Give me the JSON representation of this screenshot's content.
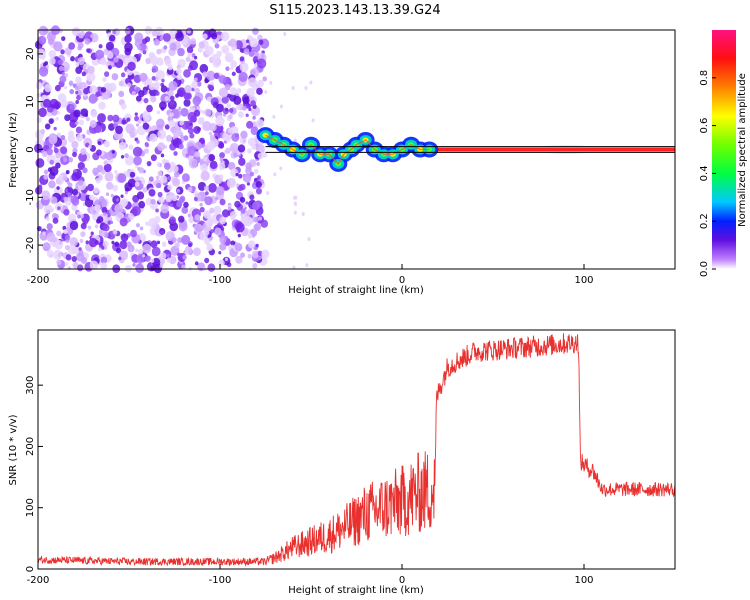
{
  "figure": {
    "title": "S115.2023.143.13.39.G24"
  },
  "chart_data": [
    {
      "type": "heatmap",
      "xlabel": "Height of straight line (km)",
      "ylabel": "Frequency (Hz)",
      "xlim": [
        -200,
        150
      ],
      "ylim": [
        -25,
        25
      ],
      "x_ticks": [
        -200,
        -100,
        0,
        100
      ],
      "y_ticks": [
        -20,
        -10,
        0,
        10,
        20
      ],
      "colorbar": {
        "label": "Normalized spectral amplitude",
        "range": [
          0,
          1
        ],
        "ticks": [
          0.0,
          0.2,
          0.4,
          0.6,
          0.8
        ],
        "colormap": "rainbow"
      },
      "regions": [
        {
          "description_x": [
            -200,
            -75
          ],
          "type": "noise",
          "amplitude": 0.12
        },
        {
          "description_x": [
            -75,
            15
          ],
          "type": "wandering",
          "amplitude": 0.45
        },
        {
          "description_x": [
            15,
            150
          ],
          "type": "stable",
          "amplitude": 1.0
        }
      ],
      "trace": {
        "x": [
          -75,
          -70,
          -65,
          -60,
          -55,
          -50,
          -45,
          -40,
          -35,
          -32,
          -28,
          -25,
          -20,
          -15,
          -10,
          -5,
          0,
          5,
          10,
          15,
          150
        ],
        "y": [
          3,
          2,
          1,
          0,
          -1,
          1,
          -1,
          -1,
          -3,
          -1,
          0,
          1,
          2,
          0,
          -1,
          -1,
          0,
          1,
          0,
          0,
          0
        ]
      },
      "reference_lines_y": [
        -0.6,
        0.6
      ]
    },
    {
      "type": "line",
      "xlabel": "Height of straight line (km)",
      "ylabel": "SNR (10 * v/v)",
      "xlim": [
        -200,
        150
      ],
      "ylim": [
        0,
        390
      ],
      "x_ticks": [
        -200,
        -100,
        0,
        100
      ],
      "y_ticks": [
        0,
        100,
        200,
        300
      ],
      "series": [
        {
          "color": "#e8312f",
          "x": [
            -200,
            -150,
            -100,
            -75,
            -70,
            -60,
            -50,
            -40,
            -30,
            -20,
            -10,
            0,
            10,
            18,
            19,
            25,
            40,
            60,
            80,
            97,
            98,
            100,
            105,
            110,
            130,
            150
          ],
          "y": [
            15,
            12,
            12,
            12,
            18,
            35,
            45,
            55,
            70,
            90,
            100,
            110,
            125,
            130,
            280,
            330,
            355,
            360,
            365,
            370,
            175,
            170,
            160,
            130,
            130,
            130
          ]
        }
      ]
    }
  ]
}
